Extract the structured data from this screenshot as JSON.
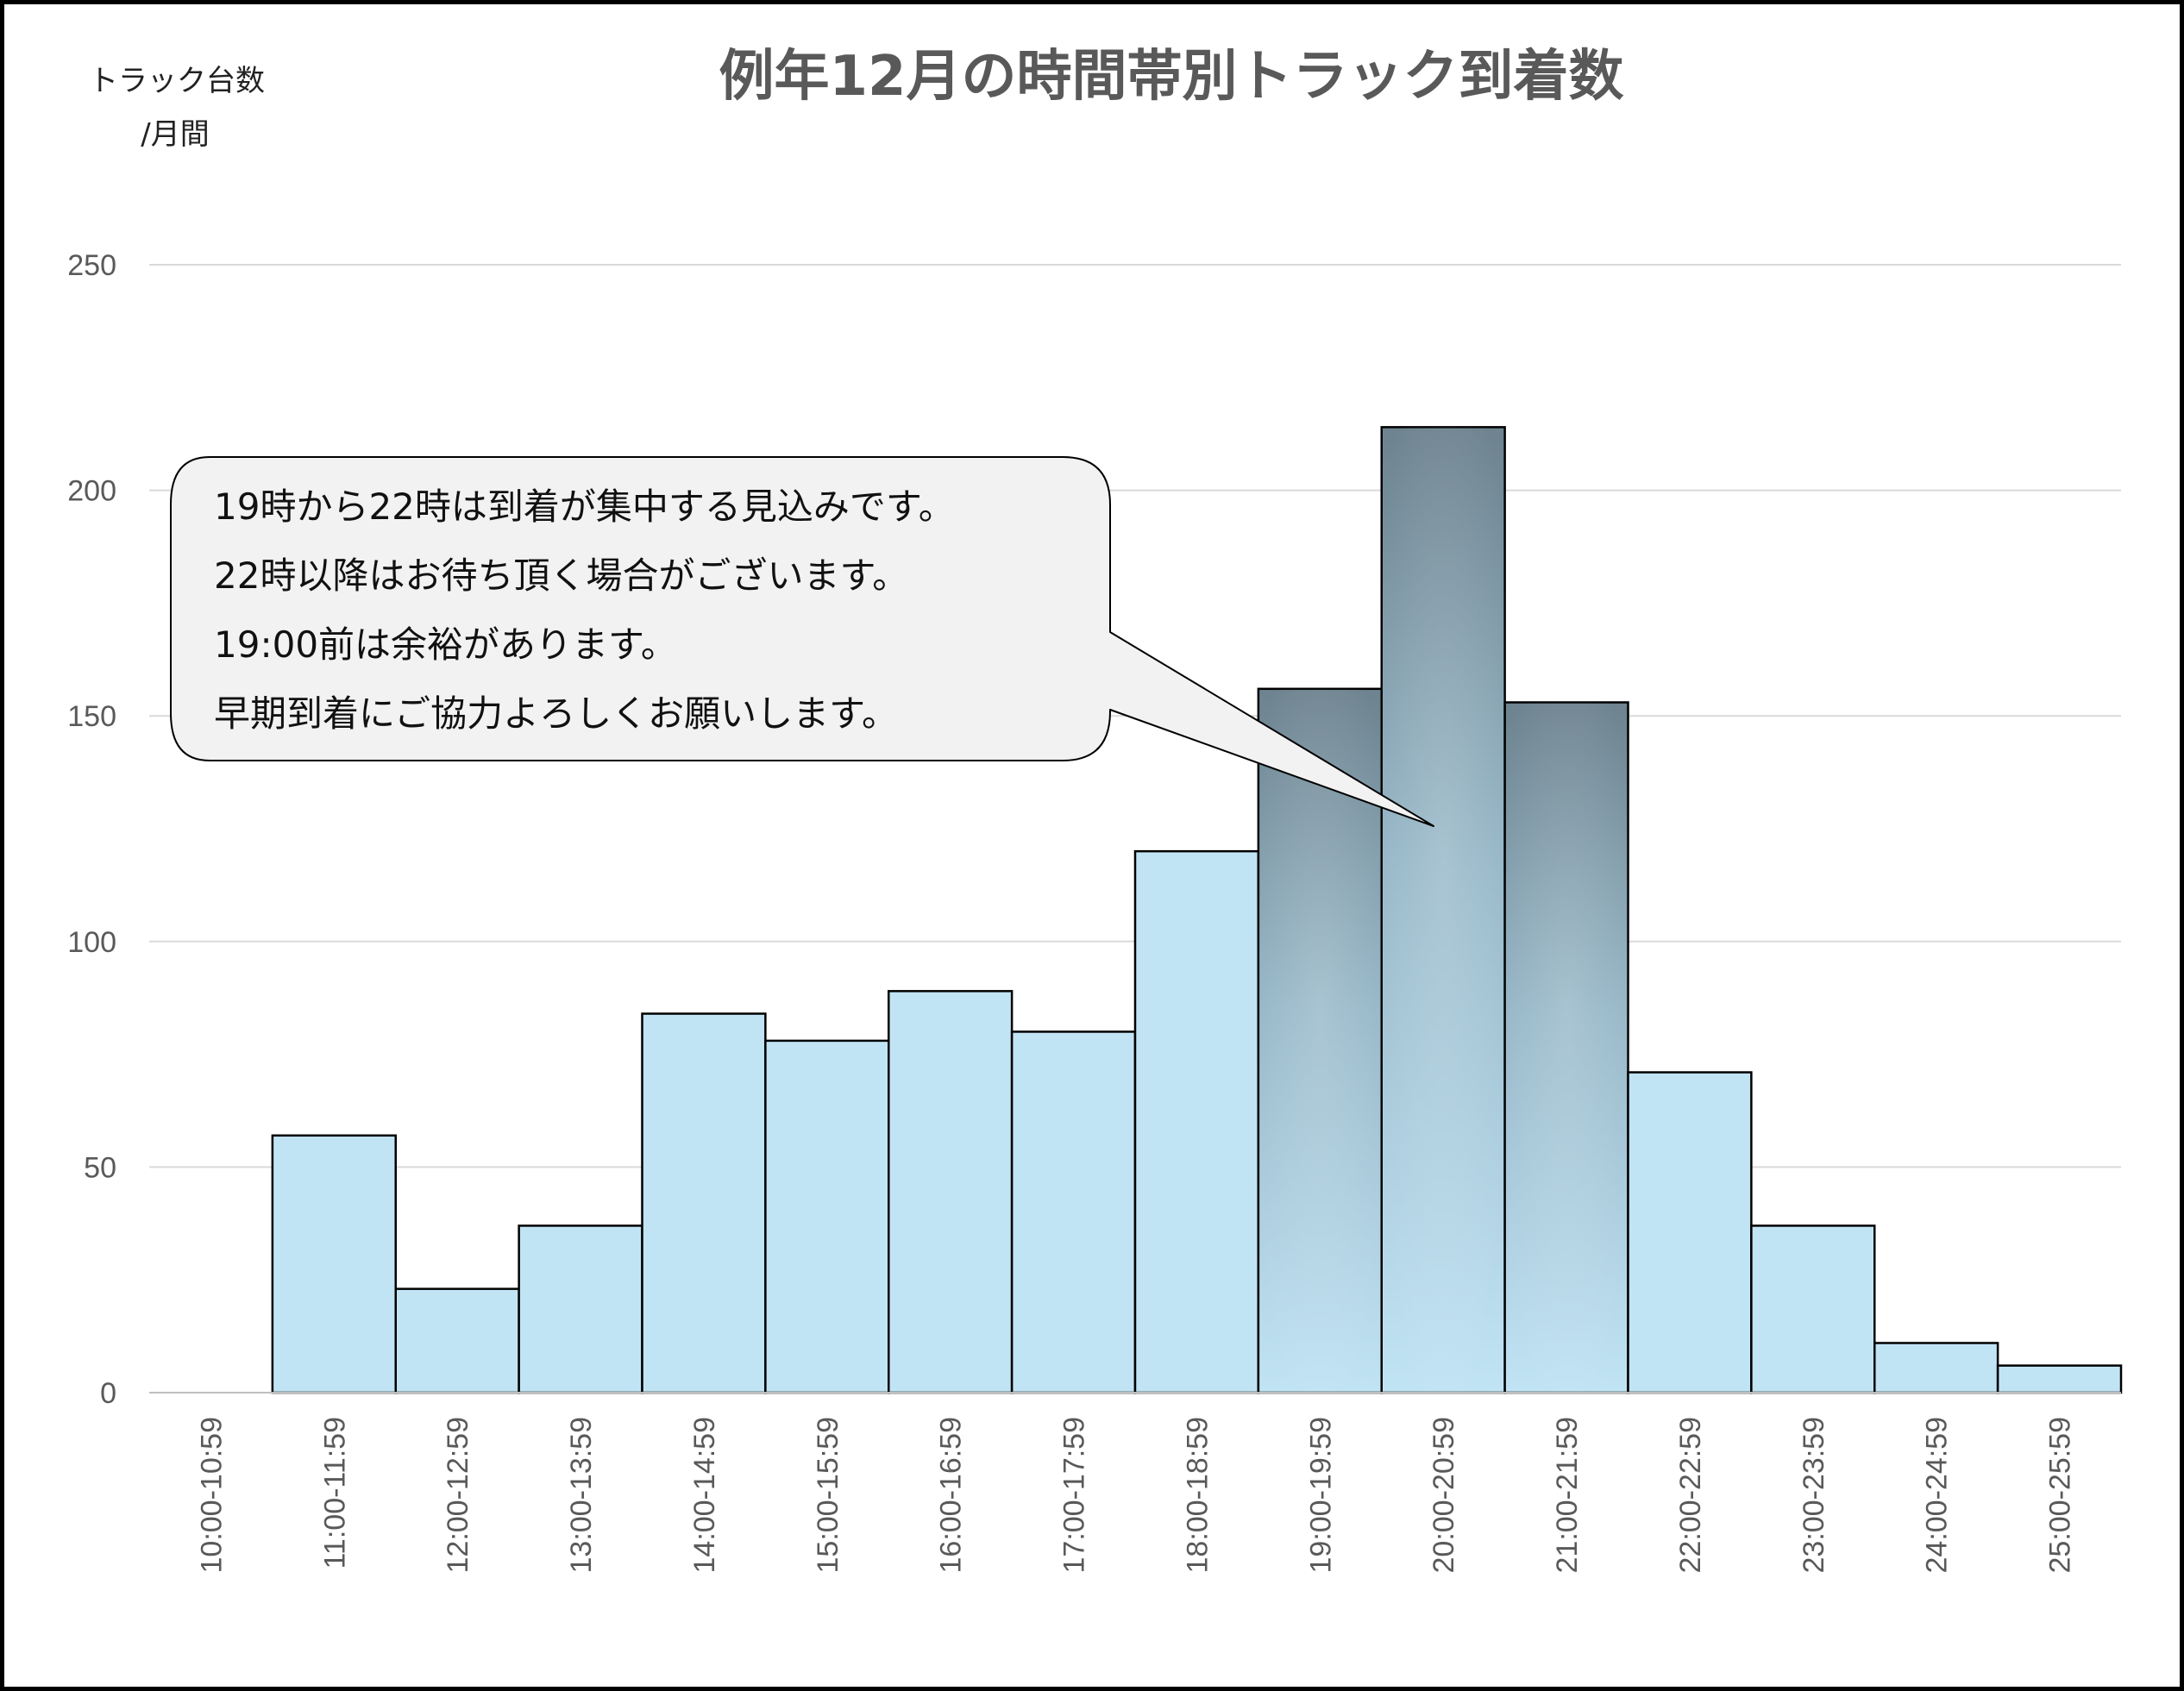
{
  "chart_data": {
    "type": "bar",
    "title": "例年12月の時間帯別トラック到着数",
    "ylabel_lines": [
      "トラック台数",
      "/月間"
    ],
    "ylim": [
      0,
      250
    ],
    "yticks": [
      0,
      50,
      100,
      150,
      200,
      250
    ],
    "categories": [
      "10:00-10:59",
      "11:00-11:59",
      "12:00-12:59",
      "13:00-13:59",
      "14:00-14:59",
      "15:00-15:59",
      "16:00-16:59",
      "17:00-17:59",
      "18:00-18:59",
      "19:00-19:59",
      "20:00-20:59",
      "21:00-21:59",
      "22:00-22:59",
      "23:00-23:59",
      "24:00-24:59",
      "25:00-25:59"
    ],
    "values": [
      0,
      57,
      23,
      37,
      84,
      78,
      89,
      80,
      120,
      156,
      214,
      153,
      71,
      37,
      11,
      6
    ],
    "highlighted": [
      "19:00-19:59",
      "20:00-20:59",
      "21:00-21:59"
    ],
    "grid": true,
    "legend": "none",
    "colors": {
      "bar_fill": "#c1e4f5",
      "bar_stroke": "#000000",
      "highlight_top": "#6d838f",
      "highlight_mid": "#95b6c7",
      "highlight_bottom": "#c1e4f5",
      "gridline": "#d9d9d9",
      "callout_fill": "#f2f2f2"
    },
    "callout": {
      "lines": [
        "19時から22時は到着が集中する見込みです。",
        "22時以降はお待ち頂く場合がございます。",
        "19:00前は余裕があります。",
        "早期到着にご協力よろしくお願いします。"
      ],
      "points_to": "20:00-20:59"
    }
  }
}
